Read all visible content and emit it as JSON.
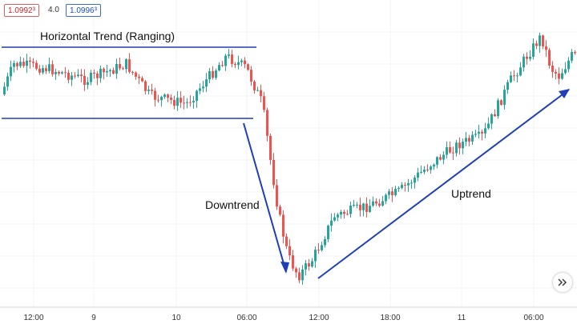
{
  "quotes": {
    "sell": "1.0992³",
    "spread": "4.0",
    "buy": "1.0996³"
  },
  "chart_data": {
    "type": "candlestick",
    "annotations": {
      "range": "Horizontal Trend (Ranging)",
      "down": "Downtrend",
      "up": "Uptrend"
    },
    "x_ticks": [
      "12:00",
      "9",
      "10",
      "06:00",
      "12:00",
      "18:00",
      "11",
      "06:00"
    ],
    "colors": {
      "up": "#26a69a",
      "down": "#ef5350",
      "annotation": "#1f3fb8"
    },
    "grid": true
  },
  "icons": {
    "scroll": "double-chevron-right-icon"
  }
}
